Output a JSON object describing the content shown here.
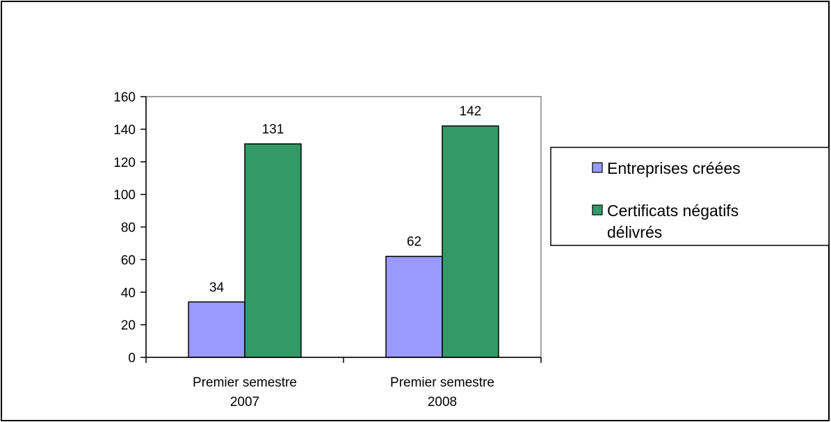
{
  "chart_data": {
    "type": "bar",
    "categories": [
      [
        "Premier semestre",
        "2007"
      ],
      [
        "Premier semestre",
        "2008"
      ]
    ],
    "series": [
      {
        "name": "Entreprises créées",
        "values": [
          34,
          62
        ],
        "color": "#9999ff"
      },
      {
        "name": "Certificats négatifs délivrés",
        "values": [
          131,
          142
        ],
        "color": "#339966"
      }
    ],
    "legend_lines": [
      [
        "Entreprises créées"
      ],
      [
        "Certificats négatifs",
        "délivrés"
      ]
    ],
    "title": "",
    "xlabel": "",
    "ylabel": "",
    "ylim": [
      0,
      160
    ],
    "yticks": [
      0,
      20,
      40,
      60,
      80,
      100,
      120,
      140,
      160
    ],
    "grid": false,
    "legend_position": "right",
    "data_labels": true
  }
}
